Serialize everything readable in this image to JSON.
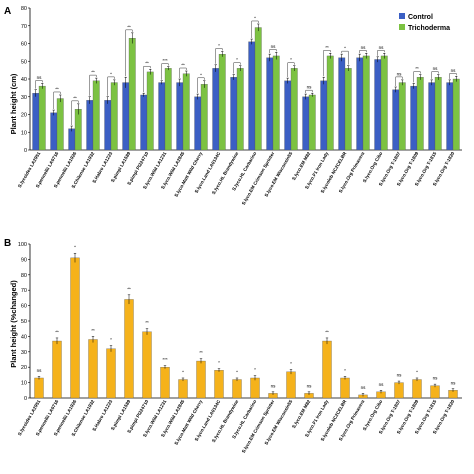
{
  "chart_data": [
    {
      "panel": "A",
      "type": "bar",
      "ylabel": "Plant height (cm)",
      "ylim": [
        0,
        80
      ],
      "yticks": [
        0,
        10,
        20,
        30,
        40,
        50,
        60,
        70,
        80
      ],
      "categories": [
        "S.lycoides LA2951",
        "S.pennellii LA0716",
        "S.pennellii LA1926",
        "S.Chilense LA1932",
        "S.Habro LA1223",
        "S.pimpi LA1589",
        "S.pimpi PI224710",
        "S.lyco.Wild LA1231",
        "S.lyco.Wild LA2845",
        "S.lyco.Matt Wild Cherry",
        "S.lyco.Land LA0134C",
        "S.lyco.HL Brandywine",
        "S.lyco.HL Carbarino",
        "S.lyco.EM Crimson Sprinter",
        "S.lyco.EM Wisconsin55",
        "S.lyco.EM M82",
        "S.lyco.F1 Iron Lady",
        "S.lycolob NC2CELBR",
        "S.lyco.Org Primavera",
        "S.lyco.Org Cibo",
        "S.lyco.Org T-1807",
        "S.lyco.Org T-1809",
        "S.lyco.Org T-1815",
        "S.lyco.Org T-1820"
      ],
      "series": [
        {
          "name": "Control",
          "color": "#3b5fc4",
          "values": [
            32,
            21,
            12,
            28,
            28,
            38,
            31,
            38,
            38,
            30,
            46,
            41,
            61,
            52,
            39,
            30,
            39,
            52,
            52,
            51,
            34,
            36,
            38,
            38
          ],
          "errors": [
            2,
            1.5,
            1.5,
            2,
            2,
            3,
            1,
            1,
            2,
            1.5,
            2,
            1.5,
            1.5,
            2,
            1.5,
            1.5,
            2,
            2,
            2,
            1.5,
            1.5,
            1.5,
            1.5,
            1.5
          ]
        },
        {
          "name": "Trichoderma",
          "color": "#7cc242",
          "values": [
            36,
            29,
            23,
            39,
            38,
            63,
            44,
            46,
            43,
            37,
            54,
            46,
            69,
            53,
            46,
            31,
            53,
            46,
            53,
            53,
            38,
            41,
            41,
            40
          ],
          "errors": [
            1.5,
            2,
            3,
            1.5,
            1.5,
            3,
            1.5,
            1,
            1.5,
            2,
            1.5,
            1.5,
            2,
            2,
            1.5,
            1,
            1.5,
            1.5,
            1.5,
            1.5,
            1.5,
            1.5,
            1.5,
            1.5
          ]
        }
      ],
      "significance": [
        "ns",
        "**",
        "**",
        "**",
        "*",
        "**",
        "**",
        "***",
        "**",
        "*",
        "*",
        "*",
        "*",
        "ns",
        "*",
        "ns",
        "**",
        "*",
        "ns",
        "ns",
        "ns",
        "**",
        "ns",
        "ns"
      ],
      "legend": "top-right",
      "grid": false
    },
    {
      "panel": "B",
      "type": "bar",
      "ylabel": "Plant height (%changed)",
      "ylim": [
        0,
        100
      ],
      "yticks": [
        0,
        10,
        20,
        30,
        40,
        50,
        60,
        70,
        80,
        90,
        100
      ],
      "categories": [
        "S.lycoides LA2951",
        "S.pennellii LA0716",
        "S.pennellii LA1926",
        "S.Chilense LA1932",
        "S.Habro LA1223",
        "S.pimpi LA1589",
        "S.pimpi PI224710",
        "S.lyco.Wild LA1231",
        "S.lyco.Wild LA2845",
        "S.lyco.Matt Wild Cherry",
        "S.lyco.Land LA0134C",
        "S.lyco.HL Brandywine",
        "S.lyco.HL Carbarino",
        "S.lyco.EM Crimson Sprinter",
        "S.lyco.EM Wisconsin55",
        "S.lyco.EM M82",
        "S.lyco.F1 Iron Lady",
        "S.lycolob NC2CELBR",
        "S.lyco.Org Primavera",
        "S.lyco.Org Cibo",
        "S.lyco.Org T-1807",
        "S.lyco.Org T-1809",
        "S.lyco.Org T-1815",
        "S.lyco.Org T-1820"
      ],
      "series": [
        {
          "name": "% changed",
          "color": "#f5b21b",
          "values": [
            13,
            37,
            91,
            38,
            32,
            64,
            43,
            20,
            12,
            24,
            18,
            12,
            13,
            3,
            17,
            3,
            37,
            13,
            2,
            4,
            10,
            12,
            8,
            5
          ],
          "errors": [
            1,
            2,
            3,
            2,
            2,
            3,
            2,
            1,
            1,
            1.5,
            1,
            1,
            1.5,
            1,
            1.5,
            1,
            2,
            1,
            1,
            1,
            1,
            1,
            1,
            1
          ]
        }
      ],
      "significance": [
        "ns",
        "**",
        "*",
        "**",
        "*",
        "**",
        "**",
        "***",
        "*",
        "**",
        "*",
        "*",
        "*",
        "ns",
        "*",
        "ns",
        "**",
        "*",
        "ns",
        "ns",
        "ns",
        "*",
        "ns",
        "ns"
      ],
      "grid": false
    }
  ]
}
